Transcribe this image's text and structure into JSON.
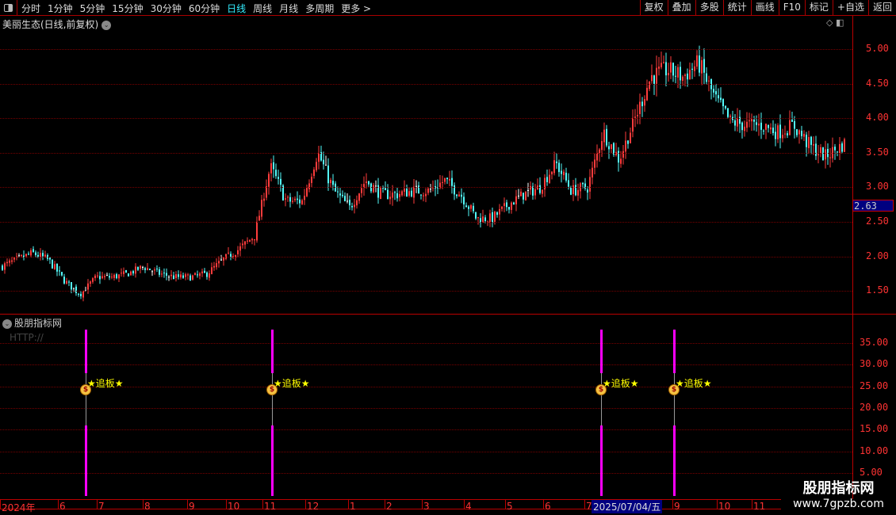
{
  "toolbar": {
    "periods": [
      "分时",
      "1分钟",
      "5分钟",
      "15分钟",
      "30分钟",
      "60分钟",
      "日线",
      "周线",
      "月线",
      "多周期",
      "更多 >"
    ],
    "active": "日线",
    "buttons": [
      "复权",
      "叠加",
      "多股",
      "统计",
      "画线",
      "F10",
      "标记",
      "+自选",
      "返回"
    ]
  },
  "main": {
    "title": "美丽生态(日线,前复权)",
    "current_price": "2.63",
    "y_ticks": [
      "5.00",
      "4.50",
      "4.00",
      "3.50",
      "3.00",
      "2.50",
      "2.00",
      "1.50"
    ],
    "closes": [
      1.85,
      1.95,
      2.05,
      1.95,
      1.65,
      1.45,
      1.7,
      1.7,
      1.75,
      1.85,
      1.75,
      1.7,
      1.7,
      1.75,
      1.95,
      2.1,
      2.3,
      3.3,
      2.8,
      2.8,
      3.5,
      2.95,
      2.7,
      3.1,
      2.9,
      2.9,
      2.95,
      2.95,
      3.1,
      2.9,
      2.55,
      2.55,
      2.75,
      2.9,
      3.0,
      3.35,
      2.95,
      3.0,
      3.8,
      3.4,
      4.0,
      4.6,
      4.7,
      4.6,
      4.8,
      4.3,
      3.95,
      3.9,
      3.9,
      3.8,
      3.9,
      3.6,
      3.45,
      3.6
    ],
    "colors": {
      "up": "#ff3c3c",
      "down": "#54fcfc",
      "flat": "#ffffff"
    }
  },
  "indicator": {
    "title": "股朋指标网",
    "subtitle": "HTTP://",
    "y_ticks": [
      "35.00",
      "30.00",
      "25.00",
      "20.00",
      "15.00",
      "10.00",
      "5.00"
    ],
    "signal_label": "★追板★",
    "signal_icon": "money-bag-icon",
    "signal_count": 4,
    "signal_color": "#ff00ff"
  },
  "time_axis": {
    "labels": [
      "2024年",
      "6",
      "7",
      "8",
      "9",
      "10",
      "11",
      "12",
      "1",
      "2",
      "3",
      "4",
      "5",
      "6",
      "7",
      "9",
      "10",
      "11"
    ],
    "selected_date": "2025/07/04/五"
  },
  "watermark": {
    "name": "股朋指标网",
    "url": "www.7gpzb.com"
  }
}
